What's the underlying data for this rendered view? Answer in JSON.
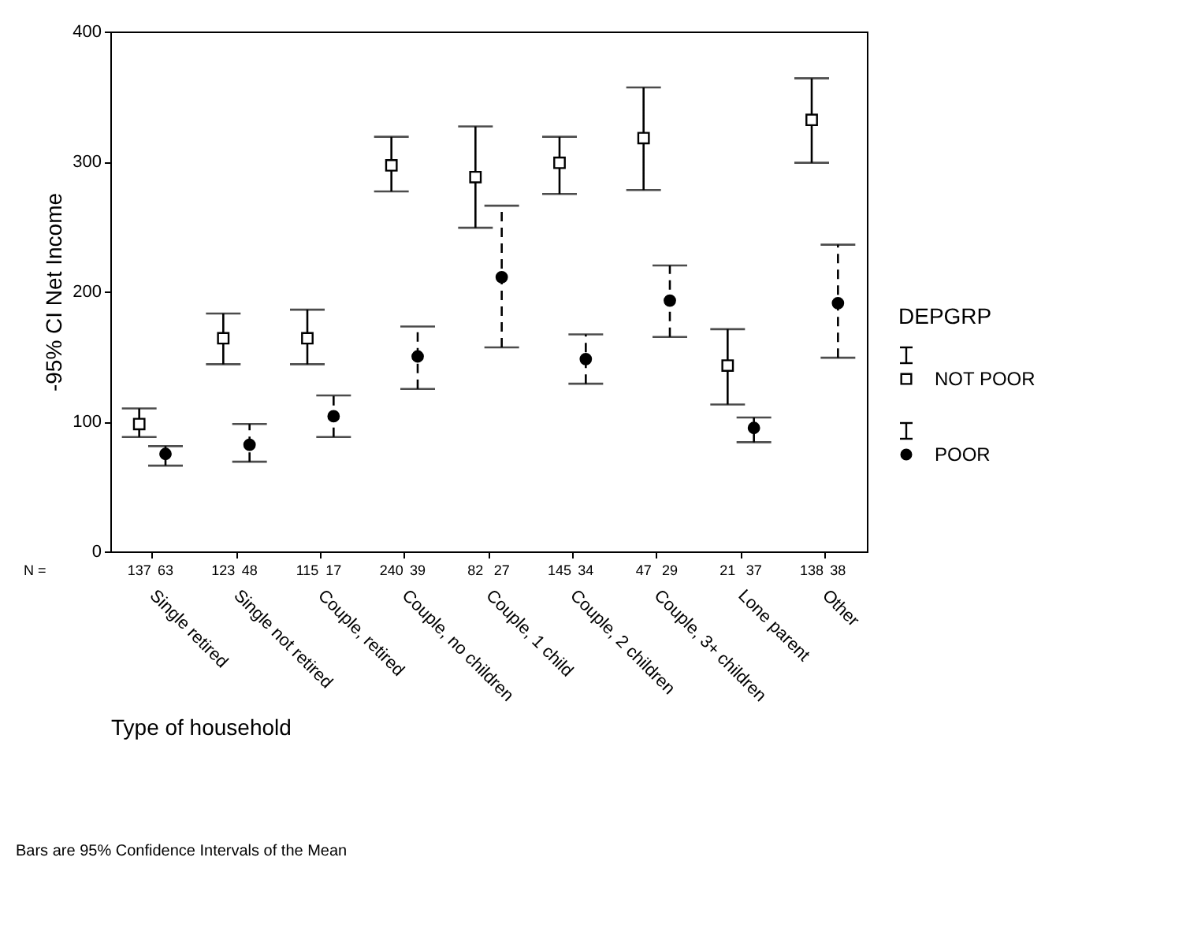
{
  "chart_data": {
    "type": "scatter",
    "xlabel": "Type of household",
    "ylabel": "-95% CI Net Income",
    "legend_title": "DEPGRP",
    "legend": "right",
    "grid": false,
    "categories": [
      "Single retired",
      "Single not retired",
      "Couple, retired",
      "Couple, no children",
      "Couple, 1 child",
      "Couple, 2 children",
      "Couple, 3+ children",
      "Lone parent",
      "Other"
    ],
    "ylim": [
      0,
      400
    ],
    "yticks": [
      0,
      100,
      200,
      300,
      400
    ],
    "series": [
      {
        "name": "NOT POOR",
        "color": "#000000",
        "marker": "square",
        "line_style": "solid",
        "values": [
          98,
          164,
          164,
          297,
          288,
          299,
          318,
          143,
          332
        ],
        "errors": [
          [
            88,
            110
          ],
          [
            144,
            183
          ],
          [
            144,
            186
          ],
          [
            277,
            319
          ],
          [
            249,
            327
          ],
          [
            275,
            319
          ],
          [
            278,
            357
          ],
          [
            113,
            171
          ],
          [
            299,
            364
          ]
        ]
      },
      {
        "name": "POOR",
        "color": "#000000",
        "marker": "circle",
        "line_style": "dashed",
        "values": [
          75,
          82,
          104,
          150,
          211,
          148,
          193,
          95,
          191
        ],
        "errors": [
          [
            66,
            81
          ],
          [
            69,
            98
          ],
          [
            88,
            120
          ],
          [
            125,
            173
          ],
          [
            157,
            266
          ],
          [
            129,
            167
          ],
          [
            165,
            220
          ],
          [
            84,
            103
          ],
          [
            149,
            236
          ]
        ]
      }
    ],
    "annotations": [
      "N =",
      "137",
      "63",
      "123",
      "48",
      "115",
      "17",
      "240",
      "39",
      "82",
      "27",
      "145",
      "34",
      "47",
      "29",
      "21",
      "37",
      "138",
      "38",
      "Bars are 95% Confidence Intervals of the Mean"
    ]
  }
}
